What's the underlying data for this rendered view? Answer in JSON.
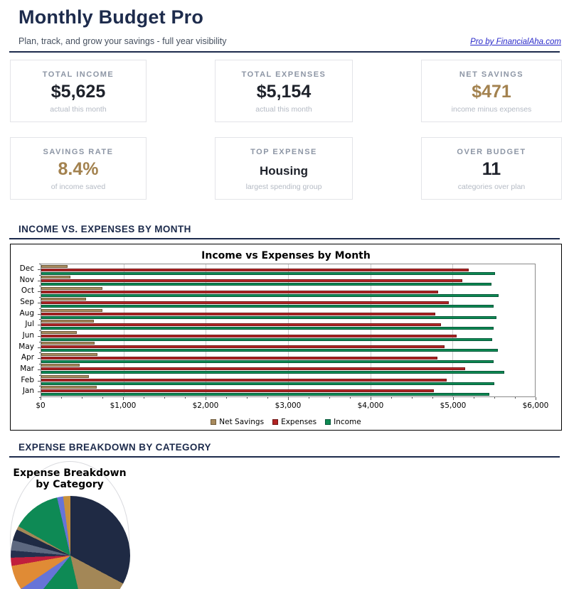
{
  "header": {
    "title": "Monthly Budget Pro",
    "subtitle": "Plan, track, and grow your savings - full year visibility",
    "link": "Pro by FinancialAha.com"
  },
  "cards": [
    {
      "label": "TOTAL INCOME",
      "value": "$5,625",
      "note": "actual this month"
    },
    {
      "label": "TOTAL EXPENSES",
      "value": "$5,154",
      "note": "actual this month"
    },
    {
      "label": "NET SAVINGS",
      "value": "$471",
      "note": "income minus expenses"
    },
    {
      "label": "SAVINGS RATE",
      "value": "8.4%",
      "note": "of income saved"
    },
    {
      "label": "TOP EXPENSE",
      "value": "Housing",
      "note": "largest spending group"
    },
    {
      "label": "OVER BUDGET",
      "value": "11",
      "note": "categories over plan"
    }
  ],
  "sections": [
    {
      "heading": "INCOME VS. EXPENSES BY MONTH"
    },
    {
      "heading": "EXPENSE BREAKDOWN BY CATEGORY"
    }
  ],
  "colors": {
    "navy": "#1d2b4c",
    "gold_accent": "#a3824f",
    "card_border": "#e3e4e8",
    "chart_border": "#d9dade"
  },
  "chart_data": [
    {
      "type": "bar",
      "orientation": "horizontal",
      "title": "Income vs Expenses by Month",
      "categories": [
        "Dec",
        "Nov",
        "Oct",
        "Sep",
        "Aug",
        "Jul",
        "Jun",
        "May",
        "Apr",
        "Mar",
        "Feb",
        "Jan"
      ],
      "series": [
        {
          "name": "Net Savings",
          "color": "#a88a5d",
          "edge": "#6e5a3a",
          "values": [
            320,
            355,
            740,
            545,
            740,
            640,
            430,
            650,
            685,
            471,
            575,
            675
          ]
        },
        {
          "name": "Expenses",
          "color": "#b22424",
          "edge": "#701717",
          "values": [
            5200,
            5115,
            4820,
            4955,
            4790,
            4860,
            5050,
            4900,
            4815,
            5154,
            4930,
            4775
          ]
        },
        {
          "name": "Income",
          "color": "#0e8a52",
          "edge": "#06573a",
          "values": [
            5520,
            5470,
            5560,
            5500,
            5530,
            5500,
            5480,
            5550,
            5500,
            5625,
            5505,
            5450
          ]
        }
      ],
      "xlim": [
        0,
        6000
      ],
      "x_ticks": [
        "$0",
        "$1,000",
        "$2,000",
        "$3,000",
        "$4,000",
        "$5,000",
        "$6,000"
      ],
      "grid": true,
      "legend": [
        "Net Savings",
        "Expenses",
        "Income"
      ],
      "legend_position": "bottom"
    },
    {
      "type": "pie",
      "title": "Expense Breakdown by Category",
      "labels_visible": false,
      "slices": [
        {
          "color": "#1f2a44",
          "degrees": 118.0,
          "pct": 32.8
        },
        {
          "color": "#a38757",
          "degrees": 49.0,
          "pct": 13.6
        },
        {
          "color": "#0e8a55",
          "degrees": 52.0,
          "pct": 14.4
        },
        {
          "color": "#6674d8",
          "degrees": 17.0,
          "pct": 4.7
        },
        {
          "color": "#e08b35",
          "degrees": 24.0,
          "pct": 6.7
        },
        {
          "color": "#c11f3d",
          "degrees": 8.0,
          "pct": 2.2
        },
        {
          "color": "#25304e",
          "degrees": 7.0,
          "pct": 1.9
        },
        {
          "color": "#5d6880",
          "degrees": 10.0,
          "pct": 2.8
        },
        {
          "color": "#1f2a44",
          "degrees": 11.0,
          "pct": 3.1
        },
        {
          "color": "#a38757",
          "degrees": 3.5,
          "pct": 1.0
        },
        {
          "color": "#0e8a55",
          "degrees": 47.5,
          "pct": 13.2
        },
        {
          "color": "#6674d8",
          "degrees": 6.0,
          "pct": 1.7
        },
        {
          "color": "#c8913c",
          "degrees": 7.0,
          "pct": 1.9
        }
      ]
    }
  ]
}
